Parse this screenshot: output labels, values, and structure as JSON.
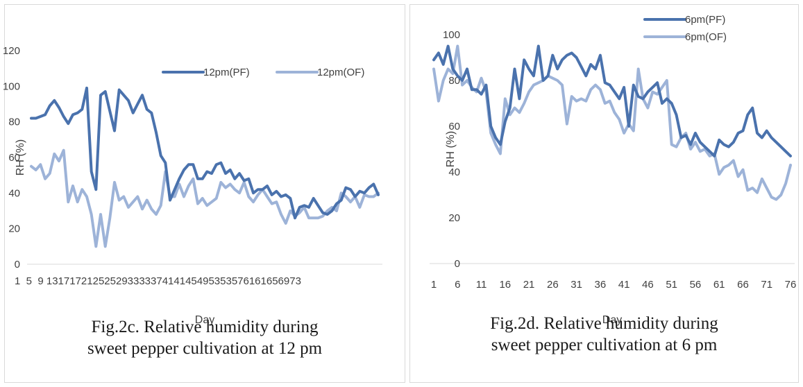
{
  "chart_data": [
    {
      "id": "fig2c",
      "type": "line",
      "caption_line1": "Fig.2c. Relative humidity during",
      "caption_line2": "sweet pepper cultivation at 12 pm",
      "xlabel": "Day",
      "ylabel": "RH (%)",
      "ylim": [
        0,
        120
      ],
      "yticks": [
        0,
        20,
        40,
        60,
        80,
        100,
        120
      ],
      "x_tick_labels_text": "1  5  9 13171721252529333337414145495353576161656973",
      "grid": false,
      "legend_position": "top",
      "x": [
        1,
        2,
        3,
        4,
        5,
        6,
        7,
        8,
        9,
        10,
        11,
        12,
        13,
        14,
        15,
        16,
        17,
        18,
        19,
        20,
        21,
        22,
        23,
        24,
        25,
        26,
        27,
        28,
        29,
        30,
        31,
        32,
        33,
        34,
        35,
        36,
        37,
        38,
        39,
        40,
        41,
        42,
        43,
        44,
        45,
        46,
        47,
        48,
        49,
        50,
        51,
        52,
        53,
        54,
        55,
        56,
        57,
        58,
        59,
        60,
        61,
        62,
        63,
        64,
        65,
        66,
        67,
        68,
        69,
        70,
        71,
        72,
        73,
        74,
        75,
        76
      ],
      "series": [
        {
          "name": "12pm(PF)",
          "color": "#4a72ad",
          "values": [
            82,
            82,
            83,
            84,
            89,
            92,
            88,
            83,
            79,
            84,
            85,
            87,
            99,
            52,
            42,
            95,
            97,
            86,
            75,
            98,
            95,
            92,
            85,
            90,
            95,
            87,
            85,
            74,
            61,
            57,
            36,
            42,
            48,
            53,
            56,
            56,
            48,
            48,
            52,
            51,
            56,
            57,
            51,
            53,
            48,
            51,
            47,
            48,
            40,
            42,
            42,
            44,
            39,
            41,
            38,
            39,
            37,
            26,
            32,
            33,
            32,
            37,
            33,
            29,
            28,
            30,
            34,
            36,
            43,
            42,
            38,
            41,
            40,
            43,
            45,
            39
          ]
        },
        {
          "name": "12pm(OF)",
          "color": "#9db3d8",
          "values": [
            55,
            53,
            56,
            48,
            51,
            62,
            58,
            64,
            35,
            44,
            35,
            42,
            38,
            28,
            10,
            28,
            10,
            26,
            46,
            36,
            38,
            32,
            35,
            38,
            31,
            36,
            31,
            28,
            33,
            52,
            38,
            38,
            45,
            38,
            44,
            48,
            34,
            37,
            33,
            35,
            37,
            46,
            43,
            45,
            42,
            40,
            46,
            38,
            35,
            39,
            42,
            38,
            34,
            35,
            28,
            23,
            30,
            27,
            29,
            32,
            26,
            26,
            26,
            27,
            30,
            32,
            30,
            40,
            38,
            35,
            38,
            32,
            39,
            38,
            38,
            40
          ]
        }
      ]
    },
    {
      "id": "fig2d",
      "type": "line",
      "caption_line1": "Fig.2d. Relative humidity during",
      "caption_line2": "sweet pepper cultivation at 6 pm",
      "xlabel": "Day",
      "ylabel": "RH (%)",
      "ylim": [
        0,
        100
      ],
      "yticks": [
        0,
        20,
        40,
        60,
        80,
        100
      ],
      "x_tick_labels": [
        "1",
        "6",
        "11",
        "16",
        "21",
        "26",
        "31",
        "36",
        "41",
        "46",
        "51",
        "56",
        "61",
        "66",
        "71",
        "76"
      ],
      "grid": false,
      "legend_position": "top-right",
      "x": [
        1,
        2,
        3,
        4,
        5,
        6,
        7,
        8,
        9,
        10,
        11,
        12,
        13,
        14,
        15,
        16,
        17,
        18,
        19,
        20,
        21,
        22,
        23,
        24,
        25,
        26,
        27,
        28,
        29,
        30,
        31,
        32,
        33,
        34,
        35,
        36,
        37,
        38,
        39,
        40,
        41,
        42,
        43,
        44,
        45,
        46,
        47,
        48,
        49,
        50,
        51,
        52,
        53,
        54,
        55,
        56,
        57,
        58,
        59,
        60,
        61,
        62,
        63,
        64,
        65,
        66,
        67,
        68,
        69,
        70,
        71,
        72,
        73,
        74,
        75,
        76
      ],
      "series": [
        {
          "name": "6pm(PF)",
          "color": "#4a72ad",
          "values": [
            89,
            92,
            87,
            95,
            85,
            82,
            80,
            85,
            76,
            76,
            74,
            78,
            60,
            55,
            52,
            62,
            68,
            85,
            72,
            89,
            85,
            82,
            95,
            80,
            82,
            91,
            85,
            89,
            91,
            92,
            90,
            86,
            82,
            87,
            85,
            91,
            79,
            78,
            75,
            72,
            77,
            60,
            78,
            73,
            72,
            75,
            77,
            79,
            70,
            72,
            70,
            65,
            55,
            56,
            52,
            57,
            53,
            51,
            49,
            47,
            54,
            52,
            51,
            53,
            57,
            58,
            65,
            68,
            57,
            55,
            58,
            55,
            53,
            51,
            49,
            47
          ]
        },
        {
          "name": "6pm(OF)",
          "color": "#9db3d8",
          "values": [
            85,
            71,
            80,
            85,
            83,
            95,
            78,
            80,
            77,
            75,
            81,
            75,
            57,
            52,
            48,
            72,
            65,
            68,
            66,
            70,
            75,
            78,
            79,
            80,
            82,
            81,
            80,
            78,
            61,
            73,
            71,
            72,
            71,
            76,
            78,
            76,
            70,
            71,
            66,
            63,
            57,
            61,
            58,
            85,
            72,
            68,
            75,
            74,
            77,
            80,
            52,
            51,
            55,
            57,
            50,
            53,
            49,
            50,
            47,
            48,
            39,
            42,
            43,
            45,
            38,
            41,
            32,
            33,
            31,
            37,
            33,
            29,
            28,
            30,
            35,
            43
          ]
        }
      ]
    }
  ]
}
